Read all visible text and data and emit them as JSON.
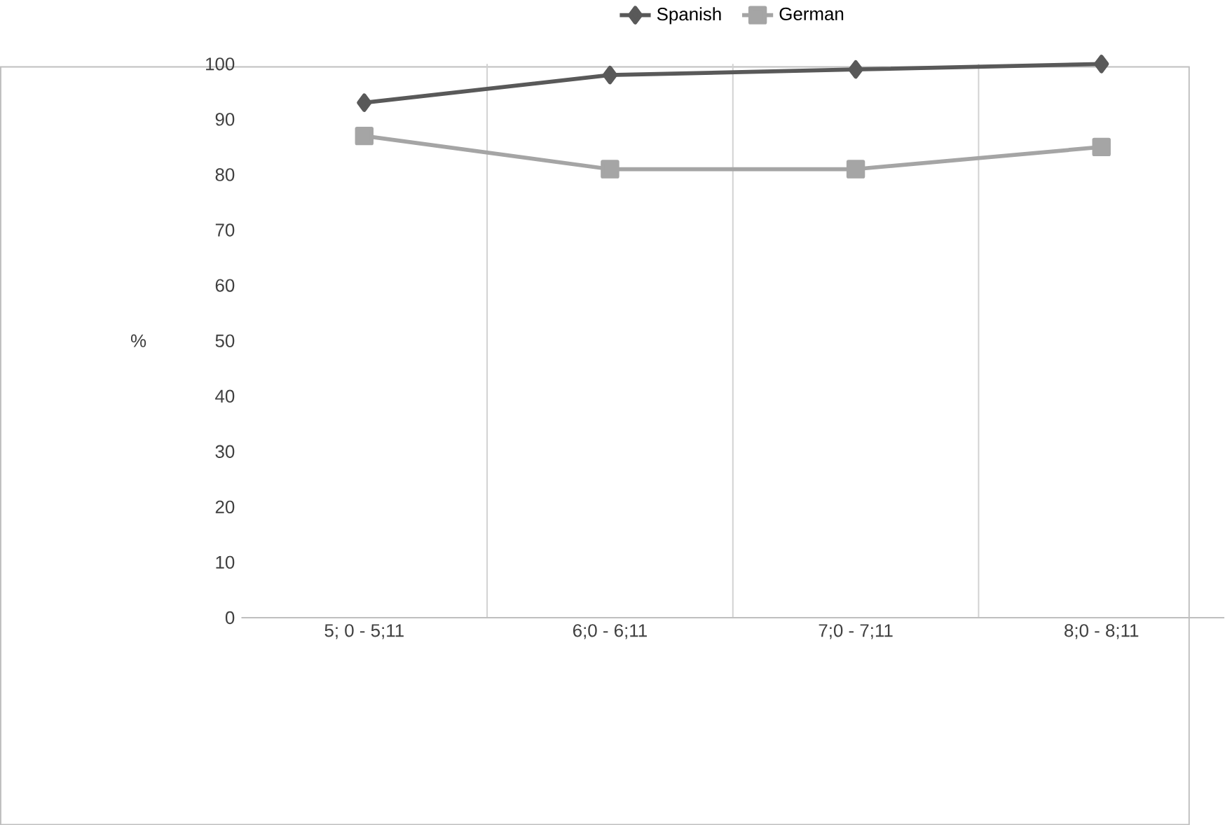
{
  "chart_data": {
    "type": "line",
    "ylabel": "%",
    "categories": [
      "5; 0 - 5;11",
      "6;0 - 6;11",
      "7;0 - 7;11",
      "8;0 - 8;11"
    ],
    "series": [
      {
        "name": "Spanish",
        "color": "#595959",
        "marker": "diamond",
        "values": [
          93,
          98,
          99,
          100
        ]
      },
      {
        "name": "German",
        "color": "#a5a5a5",
        "marker": "square",
        "values": [
          87,
          81,
          81,
          85
        ]
      }
    ],
    "ylim": [
      0,
      100
    ],
    "yticks": [
      0,
      10,
      20,
      30,
      40,
      50,
      60,
      70,
      80,
      90,
      100
    ],
    "grid": "x",
    "legend": "top",
    "line_style": "solid"
  }
}
